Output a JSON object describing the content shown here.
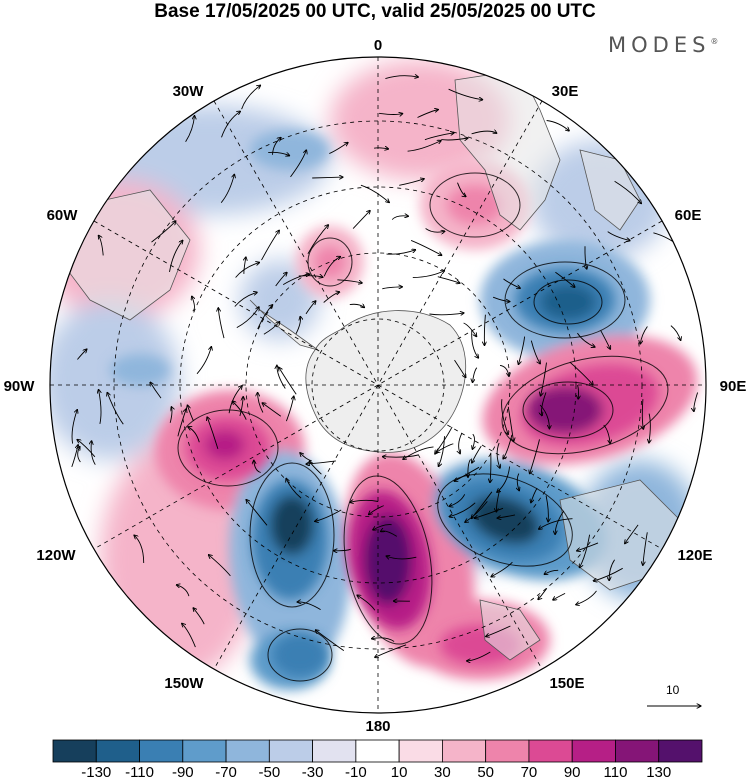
{
  "title": "Base 17/05/2025 00 UTC, valid 25/05/2025 00 UTC",
  "logo_text": "MODES",
  "logo_mark": "®",
  "longitude_labels": {
    "l0": "0",
    "l30e": "30E",
    "l60e": "60E",
    "l90e": "90E",
    "l120e": "120E",
    "l150e": "150E",
    "l180": "180",
    "l150w": "150W",
    "l120w": "120W",
    "l90w": "90W",
    "l60w": "60W",
    "l30w": "30W"
  },
  "reference_vector_label": "10",
  "colorbar": {
    "ticks": [
      "-130",
      "-110",
      "-90",
      "-70",
      "-50",
      "-30",
      "-10",
      "10",
      "30",
      "50",
      "70",
      "90",
      "110",
      "130"
    ],
    "colors": [
      "#163f5c",
      "#1f5f8b",
      "#3a7fb3",
      "#5f9ccb",
      "#8fb6dc",
      "#bccde8",
      "#e2e2f0",
      "#ffffff",
      "#fadce6",
      "#f5b4c9",
      "#ee84ab",
      "#dc4a94",
      "#b61f86",
      "#851577",
      "#54116c"
    ]
  },
  "map_colors": {
    "land": "#e6e6e6",
    "antarctica": "#eeeeee"
  }
}
